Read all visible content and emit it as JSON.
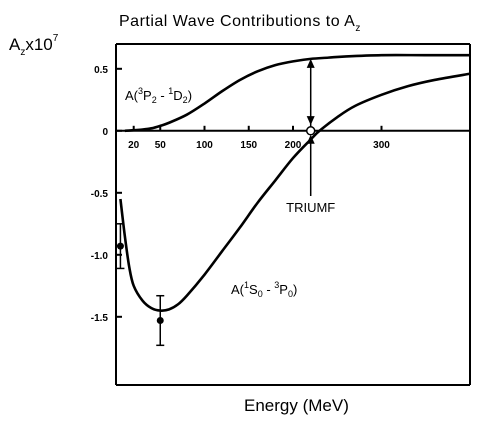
{
  "chart_data": {
    "type": "line",
    "title": "Partial Wave Contributions to A",
    "title_subscript": "z",
    "ylabel": "A",
    "ylabel_subscript": "z",
    "ylabel_factor": "x10",
    "ylabel_exponent": "7",
    "xlabel": "Energy (MeV)",
    "xlim": [
      0,
      400
    ],
    "ylim": [
      -2.05,
      0.7
    ],
    "grid": false,
    "x_ticks": [
      20,
      50,
      100,
      150,
      200,
      300
    ],
    "x_tick_labels": [
      "20",
      "50",
      "100",
      "150",
      "200",
      "300"
    ],
    "y_ticks": [
      0.5,
      0,
      -0.5,
      -1.0,
      -1.5
    ],
    "y_tick_labels": [
      "0.5",
      "0",
      "-0.5",
      "-1.0",
      "-1.5"
    ],
    "series": [
      {
        "label_parts": [
          "A(",
          "3",
          "P",
          "2",
          " - ",
          "1",
          "D",
          "2",
          ")"
        ],
        "x": [
          10,
          20,
          30,
          40,
          50,
          60,
          80,
          100,
          120,
          140,
          160,
          180,
          200,
          220,
          240,
          260,
          300,
          350,
          400
        ],
        "y": [
          0.0,
          0.005,
          0.01,
          0.02,
          0.04,
          0.065,
          0.13,
          0.22,
          0.32,
          0.41,
          0.48,
          0.53,
          0.56,
          0.58,
          0.59,
          0.6,
          0.61,
          0.61,
          0.61
        ]
      },
      {
        "label_parts": [
          "A(",
          "1",
          "S",
          "0",
          " - ",
          "3",
          "P",
          "0",
          ")"
        ],
        "x": [
          5,
          10,
          15,
          20,
          30,
          40,
          50,
          60,
          70,
          80,
          100,
          120,
          140,
          160,
          180,
          200,
          220,
          230,
          250,
          270,
          300,
          330,
          360,
          400
        ],
        "y": [
          -0.55,
          -0.85,
          -1.1,
          -1.25,
          -1.37,
          -1.43,
          -1.45,
          -1.44,
          -1.4,
          -1.33,
          -1.16,
          -0.97,
          -0.78,
          -0.58,
          -0.4,
          -0.22,
          -0.07,
          0.0,
          0.11,
          0.2,
          0.29,
          0.36,
          0.41,
          0.46
        ]
      }
    ],
    "data_points": [
      {
        "x": 5,
        "y": -0.93,
        "yerr": 0.18
      },
      {
        "x": 50,
        "y": -1.53,
        "yerr": 0.2
      }
    ],
    "annotation": {
      "text": "TRIUMF",
      "x": 220,
      "arrow_from": 0.03,
      "arrow_to": 0.58
    }
  }
}
